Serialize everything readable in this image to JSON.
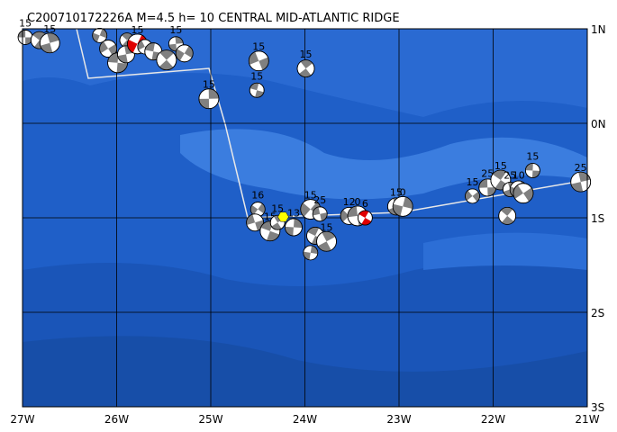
{
  "map": {
    "title": "C200710172226A M=4.5 h= 10 CENTRAL MID-ATLANTIC RIDGE",
    "xlim": [
      -27,
      -21
    ],
    "ylim": [
      -3,
      1
    ],
    "xticks": [
      {
        "value": -27,
        "label": "27W"
      },
      {
        "value": -26,
        "label": "26W"
      },
      {
        "value": -25,
        "label": "25W"
      },
      {
        "value": -24,
        "label": "24W"
      },
      {
        "value": -23,
        "label": "23W"
      },
      {
        "value": -22,
        "label": "22W"
      },
      {
        "value": -21,
        "label": "21W"
      }
    ],
    "yticks": [
      {
        "value": 1,
        "label": "1N"
      },
      {
        "value": 0,
        "label": "0N"
      },
      {
        "value": -1,
        "label": "1S"
      },
      {
        "value": -2,
        "label": "2S"
      },
      {
        "value": -3,
        "label": "3S"
      }
    ],
    "grid": true,
    "events": [
      {
        "lon": -26.97,
        "lat": 0.91,
        "label": "15",
        "color": "#808080"
      },
      {
        "lon": -26.82,
        "lat": 0.88,
        "color": "#808080"
      },
      {
        "lon": -26.71,
        "lat": 0.85,
        "label": "15",
        "color": "#808080"
      },
      {
        "lon": -26.18,
        "lat": 0.93,
        "color": "#808080"
      },
      {
        "lon": -26.09,
        "lat": 0.79,
        "color": "#808080"
      },
      {
        "lon": -25.99,
        "lat": 0.64,
        "color": "#808080"
      },
      {
        "lon": -25.89,
        "lat": 0.88,
        "color": "#808080"
      },
      {
        "lon": -25.9,
        "lat": 0.73,
        "color": "#808080"
      },
      {
        "lon": -25.78,
        "lat": 0.84,
        "label": "15",
        "color": "#e00000"
      },
      {
        "lon": -25.7,
        "lat": 0.81,
        "color": "#808080"
      },
      {
        "lon": -25.61,
        "lat": 0.76,
        "color": "#808080"
      },
      {
        "lon": -25.47,
        "lat": 0.67,
        "color": "#808080"
      },
      {
        "lon": -25.37,
        "lat": 0.84,
        "label": "15",
        "color": "#808080"
      },
      {
        "lon": -25.28,
        "lat": 0.74,
        "color": "#808080"
      },
      {
        "lon": -24.49,
        "lat": 0.66,
        "label": "15",
        "color": "#808080"
      },
      {
        "lon": -24.51,
        "lat": 0.35,
        "label": "15",
        "color": "#808080"
      },
      {
        "lon": -23.99,
        "lat": 0.58,
        "label": "15",
        "color": "#808080"
      },
      {
        "lon": -25.02,
        "lat": 0.26,
        "label": "15",
        "color": "#808080"
      },
      {
        "lon": -24.5,
        "lat": -0.91,
        "label": "16",
        "color": "#808080"
      },
      {
        "lon": -24.53,
        "lat": -1.05,
        "color": "#808080"
      },
      {
        "lon": -24.37,
        "lat": -1.14,
        "label": "15",
        "color": "#808080"
      },
      {
        "lon": -24.29,
        "lat": -1.05,
        "label": "15",
        "color": "#808080"
      },
      {
        "lon": -24.12,
        "lat": -1.1,
        "label": "13",
        "color": "#808080"
      },
      {
        "lon": -23.94,
        "lat": -0.91,
        "label": "15",
        "color": "#808080"
      },
      {
        "lon": -23.84,
        "lat": -0.96,
        "label": "25",
        "color": "#808080"
      },
      {
        "lon": -23.89,
        "lat": -1.19,
        "color": "#808080"
      },
      {
        "lon": -23.77,
        "lat": -1.25,
        "label": "15",
        "color": "#808080"
      },
      {
        "lon": -23.94,
        "lat": -1.37,
        "color": "#808080"
      },
      {
        "lon": -23.53,
        "lat": -0.98,
        "label": "12",
        "color": "#808080"
      },
      {
        "lon": -23.44,
        "lat": -0.98,
        "label": "0",
        "color": "#808080"
      },
      {
        "lon": -23.36,
        "lat": -1.0,
        "label": "6",
        "color": "#e00000"
      },
      {
        "lon": -23.03,
        "lat": -0.88,
        "label": "15",
        "color": "#808080"
      },
      {
        "lon": -22.96,
        "lat": -0.88,
        "label": "0",
        "color": "#808080"
      },
      {
        "lon": -22.22,
        "lat": -0.77,
        "label": "15",
        "color": "#808080"
      },
      {
        "lon": -22.06,
        "lat": -0.68,
        "label": "25",
        "color": "#808080"
      },
      {
        "lon": -21.92,
        "lat": -0.6,
        "label": "15",
        "color": "#808080"
      },
      {
        "lon": -21.82,
        "lat": -0.7,
        "label": "25",
        "color": "#808080"
      },
      {
        "lon": -21.73,
        "lat": -0.7,
        "label": "10",
        "color": "#808080"
      },
      {
        "lon": -21.68,
        "lat": -0.74,
        "color": "#808080"
      },
      {
        "lon": -21.58,
        "lat": -0.5,
        "label": "15",
        "color": "#808080"
      },
      {
        "lon": -21.85,
        "lat": -0.98,
        "color": "#808080"
      },
      {
        "lon": -21.07,
        "lat": -0.62,
        "label": "25",
        "color": "#808080"
      },
      {
        "lon": -24.23,
        "lat": -0.99,
        "color": "#ffff00",
        "marker": "hexagon"
      }
    ]
  }
}
